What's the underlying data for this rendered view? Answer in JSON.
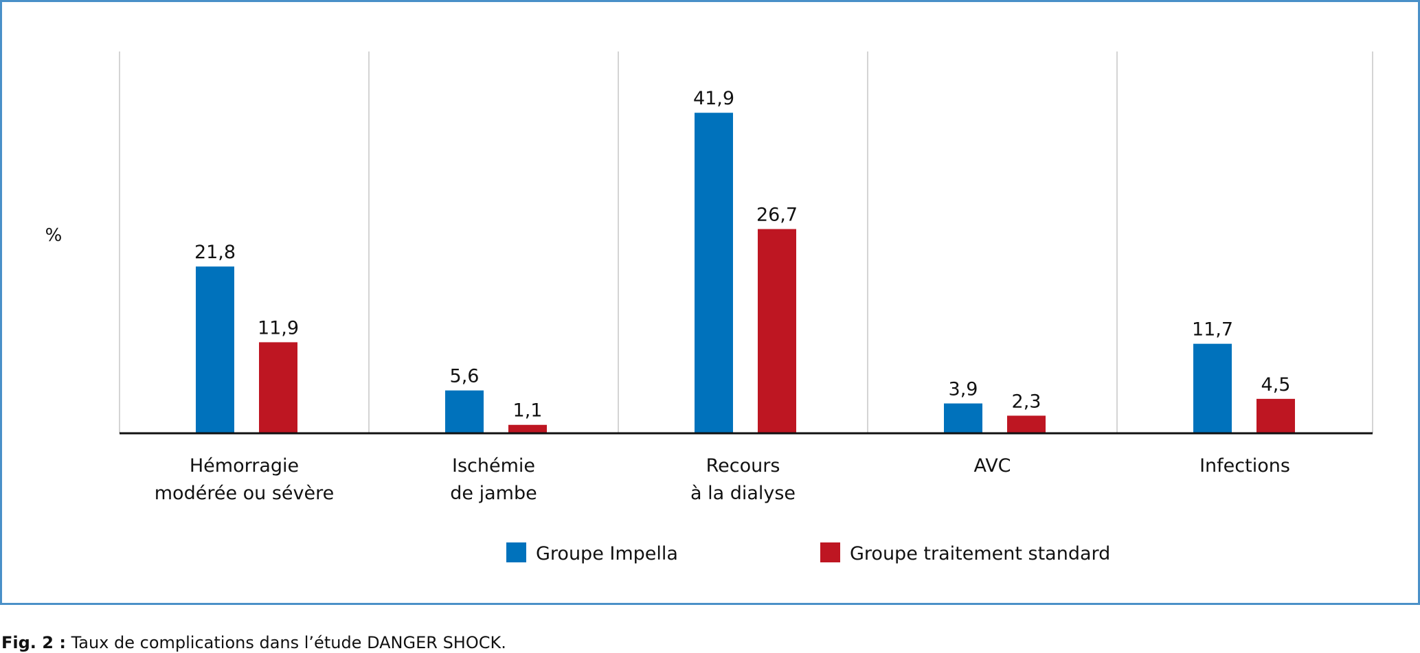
{
  "chart_data": {
    "type": "bar",
    "ylabel": "%",
    "ylim": [
      0,
      50
    ],
    "grid": "vertical separators",
    "legend_position": "bottom",
    "categories": [
      [
        "Hémorragie",
        "modérée ou sévère"
      ],
      [
        "Ischémie",
        "de jambe"
      ],
      [
        "Recours",
        "à la dialyse"
      ],
      [
        "AVC"
      ],
      [
        "Infections"
      ]
    ],
    "series": [
      {
        "name": "Groupe Impella",
        "color": "#0072bc",
        "values": [
          21.8,
          5.6,
          41.9,
          3.9,
          11.7
        ],
        "labels": [
          "21,8",
          "5,6",
          "41,9",
          "3,9",
          "11,7"
        ]
      },
      {
        "name": "Groupe traitement standard",
        "color": "#be1622",
        "values": [
          11.9,
          1.1,
          26.7,
          2.3,
          4.5
        ],
        "labels": [
          "11,9",
          "1,1",
          "26,7",
          "2,3",
          "4,5"
        ]
      }
    ]
  },
  "caption": {
    "label": "Fig. 2 :",
    "text": " Taux de complications dans l’étude DANGER SHOCK."
  }
}
